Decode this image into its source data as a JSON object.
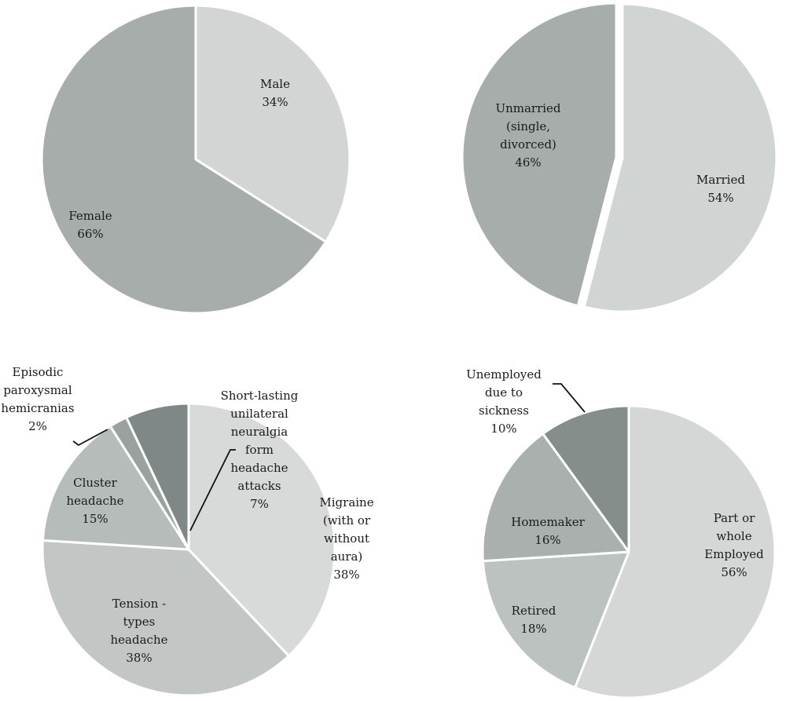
{
  "chart_data": [
    {
      "type": "pie",
      "slices": [
        {
          "label": [
            "Male"
          ],
          "pct": "34%",
          "value": 34,
          "color": "#d2d5d3"
        },
        {
          "label": [
            "Female"
          ],
          "pct": "66%",
          "value": 66,
          "color": "#a7adaa"
        }
      ]
    },
    {
      "type": "pie",
      "slices": [
        {
          "label": [
            "Married"
          ],
          "pct": "54%",
          "value": 54,
          "color": "#d0d4d2"
        },
        {
          "label": [
            "Unmarried",
            "(single,",
            "divorced)"
          ],
          "pct": "46%",
          "value": 46,
          "color": "#a6adab"
        }
      ]
    },
    {
      "type": "pie",
      "slices": [
        {
          "label": [
            "Migraine",
            "(with or",
            "without",
            "aura)"
          ],
          "pct": "38%",
          "value": 38,
          "color": "#d7dad8"
        },
        {
          "label": [
            "Tension -",
            "types",
            "headache"
          ],
          "pct": "38%",
          "value": 38,
          "color": "#c2c7c5"
        },
        {
          "label": [
            "Cluster",
            "headache"
          ],
          "pct": "15%",
          "value": 15,
          "color": "#b6bcb9"
        },
        {
          "label": [
            "Episodic",
            "paroxysmal",
            "hemicranias"
          ],
          "pct": "2%",
          "value": 2,
          "color": "#9aa2a0"
        },
        {
          "label": [
            "Short-lasting",
            "unilateral",
            "neuralgia",
            "form",
            "headache",
            "attacks"
          ],
          "pct": "7%",
          "value": 7,
          "color": "#7f8886"
        }
      ]
    },
    {
      "type": "pie",
      "slices": [
        {
          "label": [
            "Part or",
            "whole",
            "Employed"
          ],
          "pct": "56%",
          "value": 56,
          "color": "#d4d7d5"
        },
        {
          "label": [
            "Retired"
          ],
          "pct": "18%",
          "value": 18,
          "color": "#bcc2bf"
        },
        {
          "label": [
            "Homemaker"
          ],
          "pct": "16%",
          "value": 16,
          "color": "#a9b0ad"
        },
        {
          "label": [
            "Unemployed",
            "due to",
            "sickness"
          ],
          "pct": "10%",
          "value": 10,
          "color": "#858e8b"
        }
      ]
    }
  ]
}
